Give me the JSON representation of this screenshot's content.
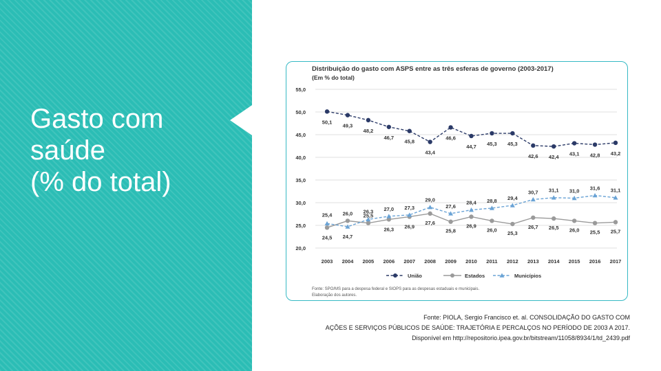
{
  "slide": {
    "title_lines": [
      "Gasto com",
      "saúde",
      "(% do total)"
    ],
    "source_lines": [
      "Fonte: PIOLA, Sergio Francisco et. al. CONSOLIDAÇÃO DO GASTO COM",
      "AÇÕES E SERVIÇOS PÚBLICOS DE SAÚDE: TRAJETÓRIA E PERCALÇOS NO PERÍODO DE 2003 A 2017.",
      "Disponível em http://repositorio.ipea.gov.br/bitstream/11058/8934/1/td_2439.pdf"
    ],
    "accent_color": "#2bbdb5"
  },
  "chart_data": {
    "type": "line",
    "title": "Distribuição do gasto com ASPS entre as três esferas de governo (2003-2017)",
    "subtitle": "(Em % do total)",
    "x": [
      "2003",
      "2004",
      "2005",
      "2006",
      "2007",
      "2008",
      "2009",
      "2010",
      "2011",
      "2012",
      "2013",
      "2014",
      "2015",
      "2016",
      "2017"
    ],
    "ylim": [
      20.0,
      55.0
    ],
    "yticks": [
      "20,0",
      "25,0",
      "30,0",
      "35,0",
      "40,0",
      "45,0",
      "50,0",
      "55,0"
    ],
    "grid": true,
    "legend_position": "bottom",
    "series": [
      {
        "name": "União",
        "color": "#2b3a67",
        "marker": "circle",
        "dashed": true,
        "values": [
          50.1,
          49.3,
          48.2,
          46.7,
          45.8,
          43.4,
          46.6,
          44.7,
          45.3,
          45.3,
          42.6,
          42.4,
          43.1,
          42.8,
          43.2
        ],
        "labels": [
          "50,1",
          "49,3",
          "48,2",
          "46,7",
          "45,8",
          "43,4",
          "46,6",
          "44,7",
          "45,3",
          "45,3",
          "42,6",
          "42,4",
          "43,1",
          "42,8",
          "43,2"
        ]
      },
      {
        "name": "Estados",
        "color": "#9a9a9a",
        "marker": "circle",
        "dashed": false,
        "values": [
          24.5,
          26.0,
          25.5,
          26.3,
          26.9,
          27.6,
          25.8,
          26.9,
          26.0,
          25.3,
          26.7,
          26.5,
          26.0,
          25.5,
          25.7
        ],
        "labels": [
          "24,5",
          "26,0",
          "25,5",
          "26,3",
          "26,9",
          "27,6",
          "25,8",
          "26,9",
          "26,0",
          "25,3",
          "26,7",
          "26,5",
          "26,0",
          "25,5",
          "25,7"
        ]
      },
      {
        "name": "Municípios",
        "color": "#6aa3d5",
        "marker": "triangle",
        "dashed": true,
        "values": [
          25.4,
          24.7,
          26.3,
          27.0,
          27.3,
          29.0,
          27.6,
          28.4,
          28.8,
          29.4,
          30.7,
          31.1,
          31.0,
          31.6,
          31.1
        ],
        "labels": [
          "25,4",
          "24,7",
          "26,3",
          "27,0",
          "27,3",
          "29,0",
          "27,6",
          "28,4",
          "28,8",
          "29,4",
          "30,7",
          "31,1",
          "31,0",
          "31,6",
          "31,1"
        ]
      }
    ],
    "note_lines": [
      "Fonte: SPO/MS para a despesa federal e SIOPS para as despesas estaduais e municipais.",
      "Elaboração dos autores."
    ]
  }
}
